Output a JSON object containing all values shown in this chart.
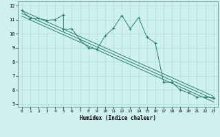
{
  "xlabel": "Humidex (Indice chaleur)",
  "x_data": [
    0,
    1,
    2,
    3,
    4,
    5,
    5,
    6,
    7,
    8,
    9,
    10,
    11,
    12,
    13,
    14,
    15,
    16,
    17,
    18,
    19,
    20,
    21,
    22,
    23
  ],
  "y_scatter": [
    11.65,
    11.1,
    11.1,
    10.95,
    11.0,
    11.35,
    10.3,
    10.35,
    9.55,
    9.0,
    8.9,
    9.85,
    10.4,
    11.3,
    10.35,
    11.15,
    9.75,
    9.35,
    6.55,
    6.55,
    6.0,
    5.8,
    5.5,
    5.5,
    5.45
  ],
  "reg_lines": [
    {
      "x": [
        0,
        23
      ],
      "y": [
        11.65,
        5.55
      ]
    },
    {
      "x": [
        0,
        23
      ],
      "y": [
        11.45,
        5.35
      ]
    },
    {
      "x": [
        0,
        23
      ],
      "y": [
        11.25,
        5.15
      ]
    }
  ],
  "line_color": "#2e7d6e",
  "bg_color": "#cff0f0",
  "grid_color": "#aadddd",
  "xlim": [
    -0.5,
    23.5
  ],
  "ylim": [
    4.8,
    12.3
  ],
  "yticks": [
    5,
    6,
    7,
    8,
    9,
    10,
    11,
    12
  ],
  "xticks": [
    0,
    1,
    2,
    3,
    4,
    5,
    6,
    7,
    8,
    9,
    10,
    11,
    12,
    13,
    14,
    15,
    16,
    17,
    18,
    19,
    20,
    21,
    22,
    23
  ]
}
